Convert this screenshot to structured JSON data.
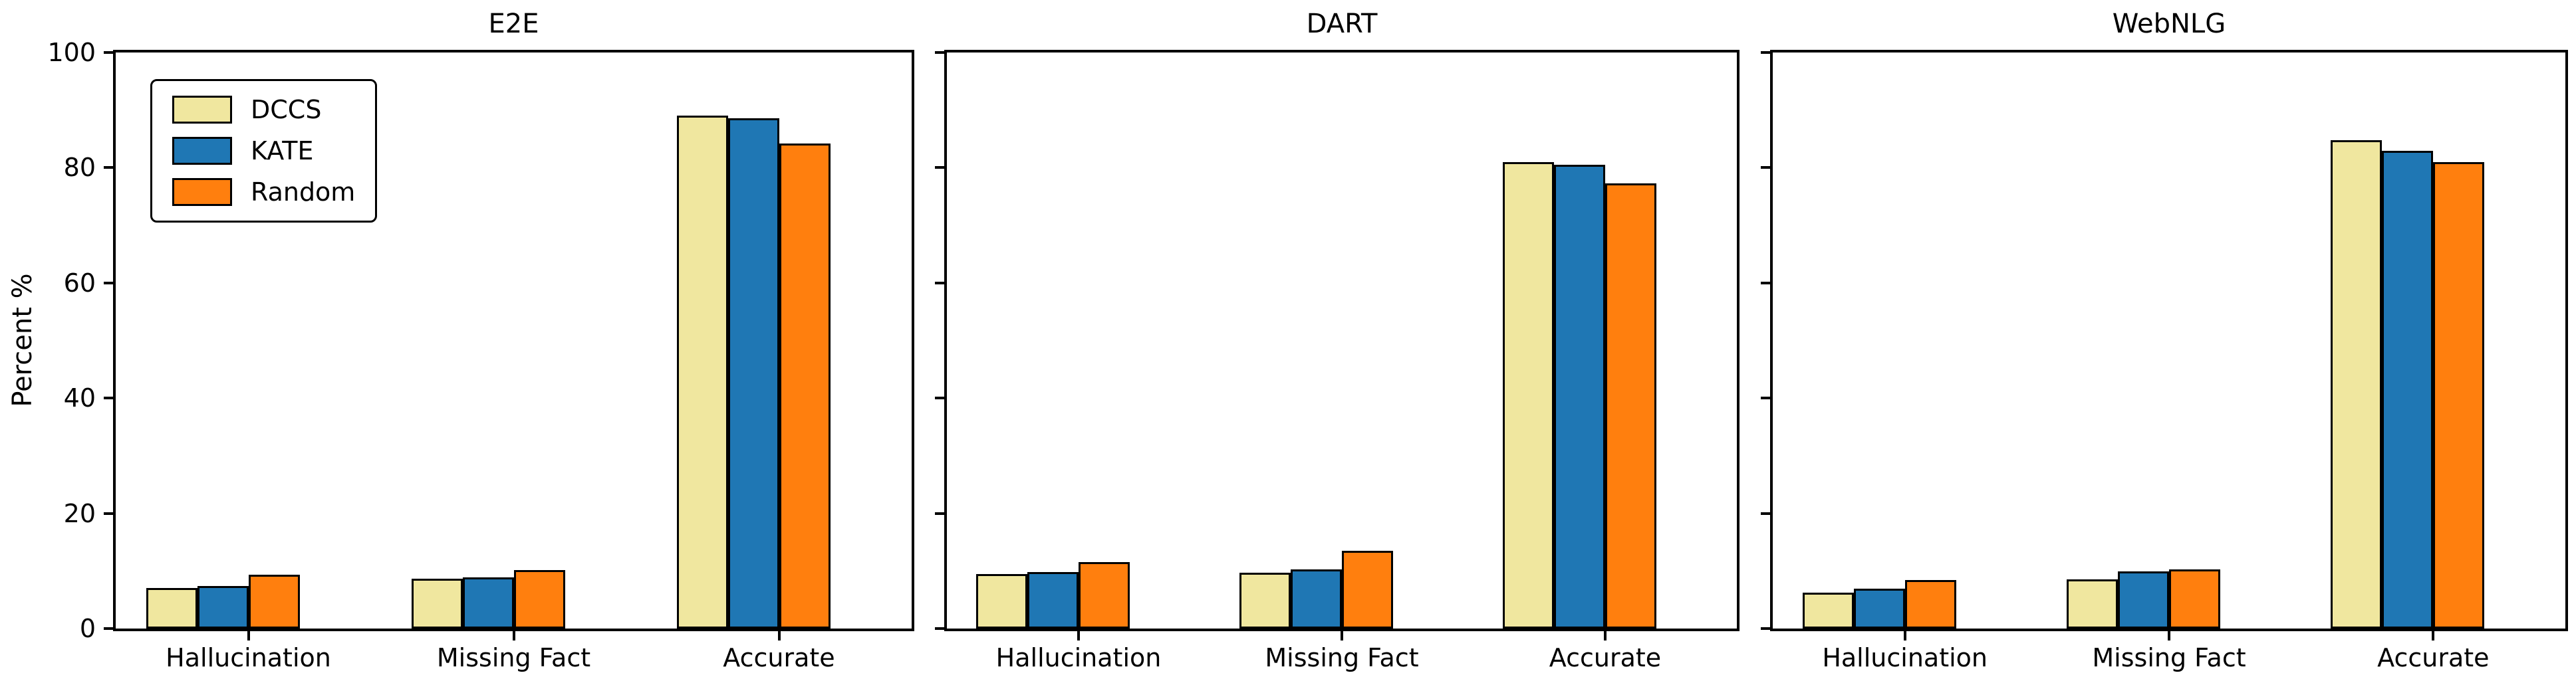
{
  "figure": {
    "background": "#ffffff"
  },
  "axes": {
    "ylabel": "Percent %",
    "ylim": [
      0,
      100
    ],
    "yticks": [
      0,
      20,
      40,
      60,
      80,
      100
    ],
    "grid": false
  },
  "legend": {
    "position": "upper-left",
    "items": [
      {
        "label": "DCCS",
        "color": "#F0E79F"
      },
      {
        "label": "KATE",
        "color": "#1F77B4"
      },
      {
        "label": "Random",
        "color": "#FF7F0E"
      }
    ]
  },
  "chart_data": [
    {
      "type": "bar",
      "title": "E2E",
      "categories": [
        "Hallucination",
        "Missing Fact",
        "Accurate"
      ],
      "series": [
        {
          "name": "DCCS",
          "color": "#F0E79F",
          "values": [
            7.0,
            8.6,
            89.0
          ]
        },
        {
          "name": "KATE",
          "color": "#1F77B4",
          "values": [
            7.4,
            8.9,
            88.6
          ]
        },
        {
          "name": "Random",
          "color": "#FF7F0E",
          "values": [
            9.4,
            10.1,
            84.2
          ]
        }
      ],
      "xlabel": "",
      "ylabel": "Percent %",
      "ylim": [
        0,
        100
      ],
      "grid": false,
      "legend_position": "upper-left"
    },
    {
      "type": "bar",
      "title": "DART",
      "categories": [
        "Hallucination",
        "Missing Fact",
        "Accurate"
      ],
      "series": [
        {
          "name": "DCCS",
          "color": "#F0E79F",
          "values": [
            9.5,
            9.7,
            81.0
          ]
        },
        {
          "name": "KATE",
          "color": "#1F77B4",
          "values": [
            9.8,
            10.3,
            80.5
          ]
        },
        {
          "name": "Random",
          "color": "#FF7F0E",
          "values": [
            11.5,
            13.5,
            77.3
          ]
        }
      ],
      "xlabel": "",
      "ylabel": "",
      "ylim": [
        0,
        100
      ],
      "grid": false
    },
    {
      "type": "bar",
      "title": "WebNLG",
      "categories": [
        "Hallucination",
        "Missing Fact",
        "Accurate"
      ],
      "series": [
        {
          "name": "DCCS",
          "color": "#F0E79F",
          "values": [
            6.2,
            8.5,
            84.8
          ]
        },
        {
          "name": "KATE",
          "color": "#1F77B4",
          "values": [
            6.9,
            9.9,
            82.9
          ]
        },
        {
          "name": "Random",
          "color": "#FF7F0E",
          "values": [
            8.4,
            10.3,
            81.0
          ]
        }
      ],
      "xlabel": "",
      "ylabel": "",
      "ylim": [
        0,
        100
      ],
      "grid": false
    }
  ]
}
